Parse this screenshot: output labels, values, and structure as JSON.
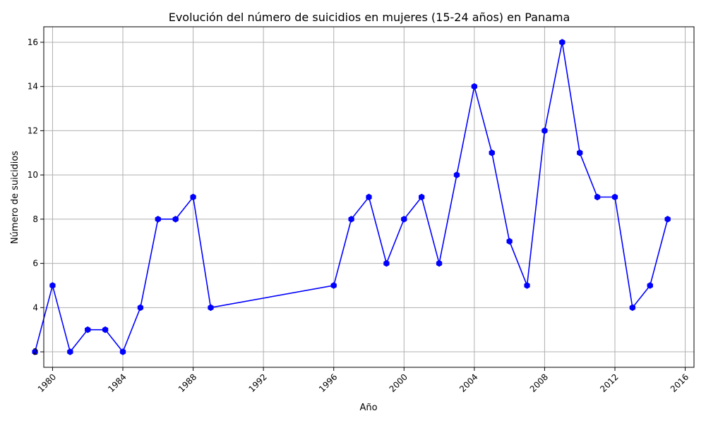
{
  "chart_data": {
    "type": "line",
    "title": "Evolución del número de suicidios en mujeres (15-24 años) en Panama",
    "xlabel": "Año",
    "ylabel": "Número de suicidios",
    "xlim": [
      1979.5,
      2016.5
    ],
    "ylim": [
      1.3,
      16.7
    ],
    "xticks": [
      1980,
      1984,
      1988,
      1992,
      1996,
      2000,
      2004,
      2008,
      2012,
      2016
    ],
    "yticks": [
      2,
      4,
      6,
      8,
      10,
      12,
      14,
      16
    ],
    "grid": true,
    "color": "#0000ff",
    "marker": "hexagon",
    "series": [
      {
        "x": [
          1979,
          1980,
          1981,
          1982,
          1983,
          1984,
          1985,
          1986,
          1987,
          1988,
          1989,
          1996,
          1997,
          1998,
          1999,
          2000,
          2001,
          2002,
          2003,
          2004,
          2005,
          2006,
          2007,
          2008,
          2009,
          2010,
          2011,
          2012,
          2013,
          2014,
          2015
        ],
        "values": [
          2,
          5,
          2,
          3,
          3,
          2,
          4,
          8,
          8,
          9,
          4,
          5,
          8,
          9,
          6,
          8,
          9,
          6,
          10,
          14,
          11,
          7,
          5,
          12,
          16,
          11,
          9,
          9,
          4,
          5,
          8
        ]
      }
    ]
  }
}
